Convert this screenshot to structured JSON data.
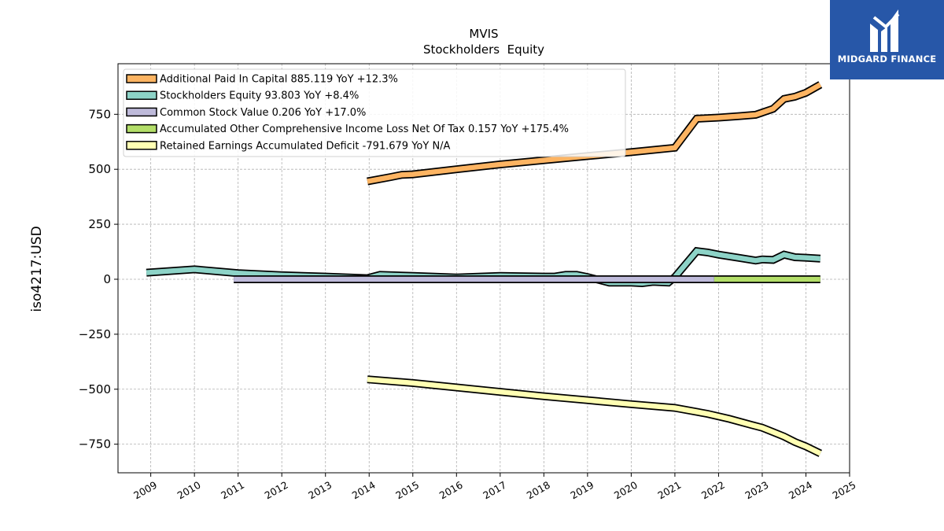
{
  "chart_data": {
    "type": "line",
    "title": "MVIS",
    "subtitle": "Stockholders  Equity",
    "ylabel": "iso4217:USD",
    "xlabel": "",
    "xlim": [
      2008.25,
      2025.0
    ],
    "ylim": [
      -880,
      980
    ],
    "x_ticks": [
      "2009",
      "2010",
      "2011",
      "2012",
      "2013",
      "2014",
      "2015",
      "2016",
      "2017",
      "2018",
      "2019",
      "2020",
      "2021",
      "2022",
      "2023",
      "2024",
      "2025"
    ],
    "y_ticks": [
      {
        "value": 750,
        "label": "750"
      },
      {
        "value": 500,
        "label": "500"
      },
      {
        "value": 250,
        "label": "250"
      },
      {
        "value": 0,
        "label": "0"
      },
      {
        "value": -250,
        "label": "−250"
      },
      {
        "value": -500,
        "label": "−500"
      },
      {
        "value": -750,
        "label": "−750"
      }
    ],
    "grid": true,
    "legend_position": "top-left",
    "series": [
      {
        "name": "Additional Paid In Capital  885.119 YoY +12.3%",
        "color": "#fdb462",
        "points": [
          [
            2013.96,
            445
          ],
          [
            2014.5,
            465
          ],
          [
            2014.75,
            475
          ],
          [
            2015.0,
            477
          ],
          [
            2016.0,
            500
          ],
          [
            2017.0,
            522
          ],
          [
            2018.0,
            541
          ],
          [
            2019.0,
            560
          ],
          [
            2020.0,
            578
          ],
          [
            2021.0,
            598
          ],
          [
            2021.5,
            730
          ],
          [
            2022.0,
            735
          ],
          [
            2022.5,
            742
          ],
          [
            2022.85,
            748
          ],
          [
            2023.25,
            775
          ],
          [
            2023.5,
            820
          ],
          [
            2023.75,
            830
          ],
          [
            2024.0,
            848
          ],
          [
            2024.33,
            885
          ]
        ]
      },
      {
        "name": "Stockholders Equity  93.803 YoY +8.4%",
        "color": "#8dd3c7",
        "points": [
          [
            2008.9,
            30
          ],
          [
            2010.0,
            45
          ],
          [
            2011.0,
            28
          ],
          [
            2012.0,
            18
          ],
          [
            2013.0,
            12
          ],
          [
            2013.96,
            5
          ],
          [
            2014.25,
            20
          ],
          [
            2015.0,
            15
          ],
          [
            2016.0,
            8
          ],
          [
            2017.0,
            15
          ],
          [
            2018.0,
            12
          ],
          [
            2018.25,
            12
          ],
          [
            2018.5,
            20
          ],
          [
            2018.75,
            20
          ],
          [
            2019.0,
            10
          ],
          [
            2019.5,
            -15
          ],
          [
            2020.0,
            -15
          ],
          [
            2020.25,
            -18
          ],
          [
            2020.5,
            -12
          ],
          [
            2020.85,
            -15
          ],
          [
            2021.0,
            10
          ],
          [
            2021.5,
            128
          ],
          [
            2021.75,
            122
          ],
          [
            2022.0,
            112
          ],
          [
            2022.5,
            96
          ],
          [
            2022.85,
            85
          ],
          [
            2023.0,
            90
          ],
          [
            2023.25,
            88
          ],
          [
            2023.5,
            112
          ],
          [
            2023.75,
            100
          ],
          [
            2024.0,
            98
          ],
          [
            2024.33,
            94
          ]
        ]
      },
      {
        "name": "Common Stock Value  0.206 YoY +17.0%",
        "color": "#bebada",
        "points": [
          [
            2010.9,
            0
          ],
          [
            2021.9,
            0
          ]
        ]
      },
      {
        "name": "Accumulated Other Comprehensive Income Loss Net Of Tax  0.157 YoY +175.4%",
        "color": "#b3de69",
        "points": [
          [
            2021.9,
            0
          ],
          [
            2024.33,
            0
          ]
        ]
      },
      {
        "name": "Retained Earnings Accumulated Deficit  -791.679 YoY N/A",
        "color": "#ffffb3",
        "points": [
          [
            2013.96,
            -455
          ],
          [
            2015.0,
            -472
          ],
          [
            2016.0,
            -492
          ],
          [
            2017.0,
            -512
          ],
          [
            2018.0,
            -532
          ],
          [
            2019.0,
            -550
          ],
          [
            2020.0,
            -568
          ],
          [
            2021.0,
            -585
          ],
          [
            2021.75,
            -612
          ],
          [
            2022.25,
            -635
          ],
          [
            2022.75,
            -662
          ],
          [
            2023.0,
            -675
          ],
          [
            2023.25,
            -695
          ],
          [
            2023.5,
            -715
          ],
          [
            2023.75,
            -740
          ],
          [
            2024.0,
            -760
          ],
          [
            2024.33,
            -792
          ]
        ]
      }
    ]
  },
  "logo": {
    "text": "MIDGARD FINANCE",
    "color": "#2757a8"
  }
}
